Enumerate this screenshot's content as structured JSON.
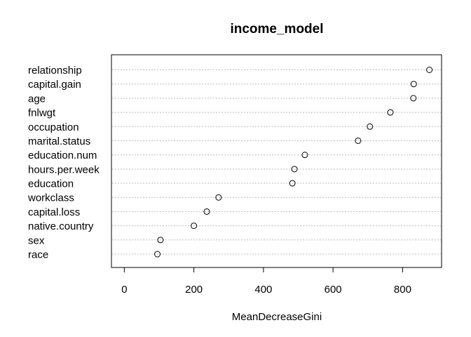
{
  "chart_data": {
    "type": "scatter",
    "subtype": "dotchart",
    "title": "income_model",
    "xlabel": "MeanDecreaseGini",
    "ylabel": "",
    "xlim": [
      -37,
      912
    ],
    "xticks": [
      0,
      200,
      400,
      600,
      800
    ],
    "grid": "dotted horizontal guide lines",
    "legend": "none",
    "categories": [
      "relationship",
      "capital.gain",
      "age",
      "fnlwgt",
      "occupation",
      "marital.status",
      "education.num",
      "hours.per.week",
      "education",
      "workclass",
      "capital.loss",
      "native.country",
      "sex",
      "race"
    ],
    "values": [
      877,
      832,
      831,
      765,
      706,
      672,
      519,
      489,
      483,
      271,
      237,
      200,
      104,
      95
    ]
  }
}
